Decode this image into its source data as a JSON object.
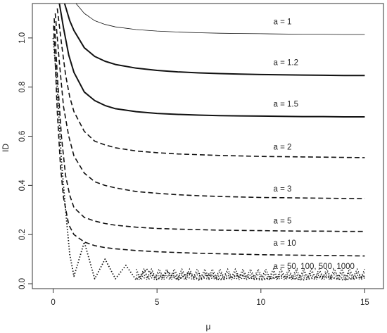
{
  "chart_data": {
    "type": "line",
    "xlabel": "μ",
    "ylabel": "ID",
    "xlim": [
      -1.0,
      15.9
    ],
    "ylim": [
      -0.02,
      1.14
    ],
    "x_ticks": [
      0,
      5,
      10,
      15
    ],
    "y_ticks": [
      0.0,
      0.2,
      0.4,
      0.6,
      0.8,
      1.0
    ],
    "x_tick_labels": [
      "0",
      "5",
      "10",
      "15"
    ],
    "y_tick_labels": [
      "0.0",
      "0.2",
      "0.4",
      "0.6",
      "0.8",
      "1.0"
    ],
    "grid": false,
    "legend": "inline labels",
    "series": [
      {
        "label": "a = 1",
        "label_x": 10.6,
        "label_y": 1.055,
        "line": "thin-solid",
        "x": [
          1.1,
          1.5,
          2,
          2.5,
          3,
          4,
          5,
          6,
          7,
          8,
          9,
          10,
          11,
          12,
          13,
          14,
          15
        ],
        "y": [
          1.14,
          1.1,
          1.07,
          1.055,
          1.045,
          1.034,
          1.028,
          1.024,
          1.021,
          1.019,
          1.018,
          1.017,
          1.016,
          1.015,
          1.015,
          1.014,
          1.014
        ]
      },
      {
        "label": "a = 1.2",
        "label_x": 10.6,
        "label_y": 0.89,
        "line": "thick-solid",
        "x": [
          0.55,
          0.8,
          1,
          1.5,
          2,
          2.5,
          3,
          4,
          5,
          6,
          7,
          8,
          9,
          10,
          11,
          12,
          13,
          14,
          15
        ],
        "y": [
          1.14,
          1.07,
          1.03,
          0.96,
          0.925,
          0.905,
          0.892,
          0.877,
          0.868,
          0.862,
          0.858,
          0.855,
          0.853,
          0.851,
          0.85,
          0.849,
          0.848,
          0.847,
          0.847
        ]
      },
      {
        "label": "a = 1.5",
        "label_x": 10.6,
        "label_y": 0.72,
        "line": "thick-solid",
        "x": [
          0.3,
          0.5,
          0.75,
          1,
          1.5,
          2,
          2.5,
          3,
          4,
          5,
          6,
          7,
          8,
          9,
          10,
          11,
          12,
          13,
          14,
          15
        ],
        "y": [
          1.14,
          1.04,
          0.93,
          0.86,
          0.78,
          0.745,
          0.725,
          0.712,
          0.7,
          0.693,
          0.689,
          0.686,
          0.684,
          0.683,
          0.682,
          0.681,
          0.68,
          0.68,
          0.679,
          0.679
        ]
      },
      {
        "label": "a = 2",
        "label_x": 10.6,
        "label_y": 0.545,
        "line": "dashed",
        "x": [
          0.2,
          0.4,
          0.6,
          0.8,
          1,
          1.5,
          2,
          2.5,
          3,
          4,
          5,
          6,
          7,
          8,
          9,
          10,
          11,
          12,
          13,
          14,
          15
        ],
        "y": [
          1.12,
          0.98,
          0.85,
          0.76,
          0.7,
          0.62,
          0.58,
          0.565,
          0.553,
          0.54,
          0.533,
          0.528,
          0.525,
          0.522,
          0.52,
          0.518,
          0.517,
          0.516,
          0.515,
          0.514,
          0.513
        ]
      },
      {
        "label": "a = 3",
        "label_x": 10.6,
        "label_y": 0.375,
        "line": "dashed",
        "x": [
          0.1,
          0.3,
          0.5,
          0.75,
          1,
          1.5,
          2,
          2.5,
          3,
          4,
          5,
          6,
          7,
          8,
          9,
          10,
          11,
          12,
          13,
          14,
          15
        ],
        "y": [
          1.1,
          0.9,
          0.72,
          0.6,
          0.52,
          0.45,
          0.415,
          0.4,
          0.39,
          0.375,
          0.368,
          0.362,
          0.358,
          0.355,
          0.353,
          0.351,
          0.35,
          0.349,
          0.348,
          0.347,
          0.346
        ]
      },
      {
        "label": "a = 5",
        "label_x": 10.6,
        "label_y": 0.245,
        "line": "dashed",
        "x": [
          0.05,
          0.2,
          0.4,
          0.6,
          0.8,
          1,
          1.5,
          2,
          2.5,
          3,
          4,
          5,
          6,
          7,
          8,
          9,
          10,
          11,
          12,
          13,
          14,
          15
        ],
        "y": [
          1.08,
          0.85,
          0.6,
          0.44,
          0.36,
          0.31,
          0.27,
          0.255,
          0.245,
          0.238,
          0.23,
          0.225,
          0.222,
          0.22,
          0.218,
          0.217,
          0.216,
          0.215,
          0.214,
          0.214,
          0.213,
          0.213
        ]
      },
      {
        "label": "a = 10",
        "label_x": 10.6,
        "label_y": 0.155,
        "line": "dashed",
        "x": [
          0.02,
          0.1,
          0.2,
          0.35,
          0.5,
          0.75,
          1,
          1.5,
          2,
          2.5,
          3,
          4,
          5,
          6,
          7,
          8,
          9,
          10,
          11,
          12,
          13,
          14,
          15
        ],
        "y": [
          1.05,
          0.9,
          0.7,
          0.48,
          0.35,
          0.24,
          0.2,
          0.17,
          0.155,
          0.147,
          0.142,
          0.135,
          0.13,
          0.127,
          0.124,
          0.122,
          0.12,
          0.118,
          0.117,
          0.116,
          0.115,
          0.114,
          0.113
        ]
      },
      {
        "label": "a = 50, 100, 500, 1000",
        "label_x": 10.6,
        "label_y": 0.06,
        "line": "dotted",
        "x": [
          0.0,
          0.2,
          0.4,
          0.6,
          0.8,
          1.0,
          1.5,
          2.0,
          2.5,
          3.0,
          3.5,
          4.0,
          4.5,
          5.0,
          5.5,
          6.0,
          6.5,
          7.0,
          7.5,
          8.0,
          9.0,
          10.0,
          11.0,
          12.0,
          13.0,
          14.0,
          15.0
        ],
        "y": [
          1.0,
          0.8,
          0.5,
          0.3,
          0.12,
          0.03,
          0.17,
          0.02,
          0.1,
          0.02,
          0.075,
          0.015,
          0.06,
          0.015,
          0.05,
          0.015,
          0.045,
          0.015,
          0.04,
          0.015,
          0.035,
          0.015,
          0.03,
          0.015,
          0.03,
          0.015,
          0.03
        ]
      }
    ],
    "dotted_band": {
      "x_start": 4.0,
      "x_end": 15.0,
      "y_values": [
        0.02,
        0.028,
        0.036,
        0.044
      ]
    }
  }
}
